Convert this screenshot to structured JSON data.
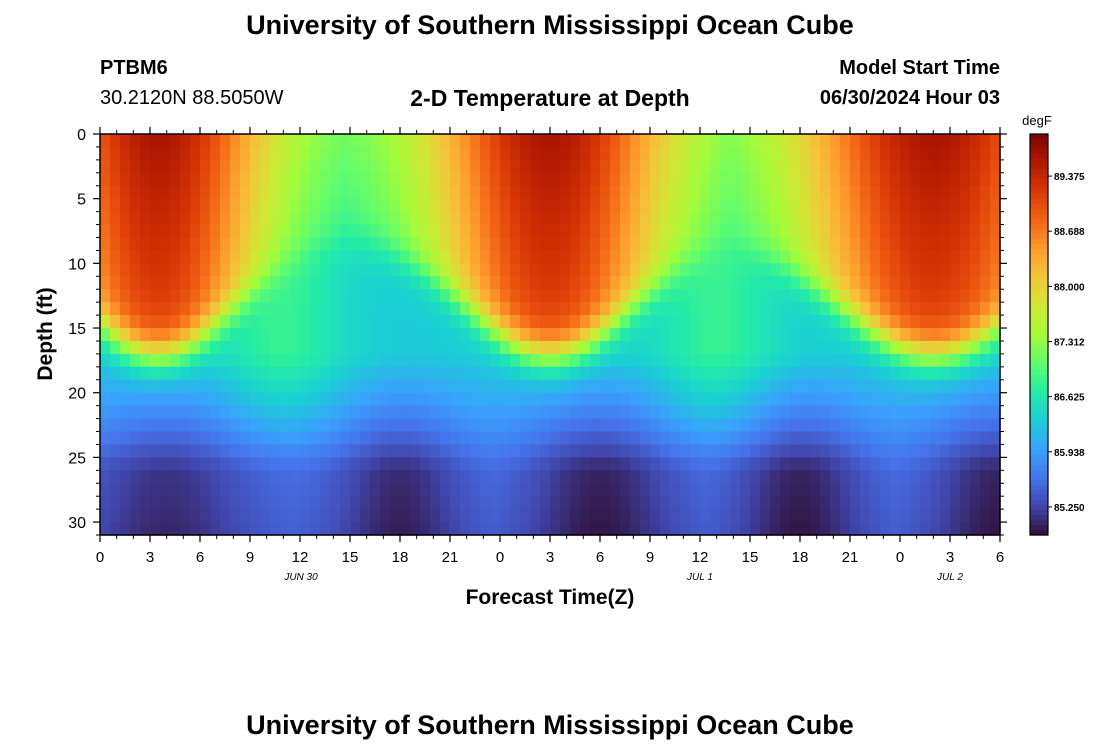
{
  "header": {
    "title": "University of Southern Mississippi Ocean Cube",
    "station_id": "PTBM6",
    "station_coords": "30.2120N  88.5050W",
    "plot_title": "2-D Temperature at Depth",
    "model_start_label": "Model Start Time",
    "model_start_value": "06/30/2024 Hour 03",
    "footer_title": "University of Southern Mississippi Ocean Cube"
  },
  "chart_data": {
    "type": "heatmap",
    "title": "2-D Temperature at Depth",
    "xlabel": "Forecast Time(Z)",
    "ylabel": "Depth (ft)",
    "x_ticks": [
      "0",
      "3",
      "6",
      "9",
      "12",
      "15",
      "18",
      "21",
      "0",
      "3",
      "6",
      "9",
      "12",
      "15",
      "18",
      "21",
      "0",
      "3",
      "6"
    ],
    "date_labels": [
      "JUN 30",
      "JUL 1",
      "JUL 2"
    ],
    "y_ticks": [
      0,
      5,
      10,
      15,
      20,
      25,
      30
    ],
    "ylim": [
      0,
      31
    ],
    "x_range_hours": [
      0,
      54
    ],
    "colorbar": {
      "unit": "degF",
      "tick_values": [
        "89.375",
        "88.688",
        "88.000",
        "87.312",
        "86.625",
        "85.938",
        "85.250"
      ],
      "range": [
        84.9,
        89.9
      ],
      "colors": [
        "#30123b",
        "#4145ab",
        "#4675ed",
        "#39a2fc",
        "#1bcfd4",
        "#24eca6",
        "#61fc6c",
        "#a4fc3b",
        "#d1e834",
        "#f3c63a",
        "#fe9b2d",
        "#f36315",
        "#d93806",
        "#b11901",
        "#7a0402"
      ]
    },
    "fields": [
      {
        "name": "surface_heat",
        "description": "warm surface layer (0-15 ft) peaking near x=2-4h, 27h, 48h"
      },
      {
        "name": "cool_bottom",
        "description": "cool bottom layer (20-31 ft) with minima near 18h, 30h, 42h, 54h"
      }
    ]
  }
}
